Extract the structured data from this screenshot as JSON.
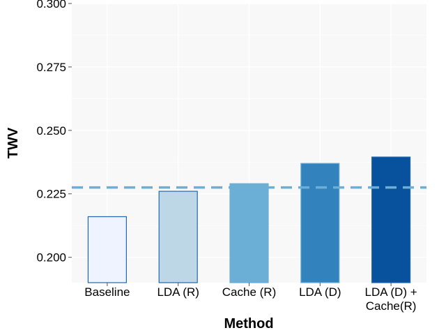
{
  "chart_data": {
    "type": "bar",
    "title": "",
    "xlabel": "Method",
    "ylabel": "TWV",
    "categories": [
      [
        "Baseline"
      ],
      [
        "LDA (R)"
      ],
      [
        "Cache (R)"
      ],
      [
        "LDA (D)"
      ],
      [
        "LDA (D) +",
        "Cache(R)"
      ]
    ],
    "values": [
      0.216,
      0.226,
      0.229,
      0.237,
      0.2395
    ],
    "bar_colors": [
      "#eff3ff",
      "#bdd7e7",
      "#6baed6",
      "#3182bd",
      "#08519c"
    ],
    "bar_strokes": [
      "#2166ac",
      "#2166ac",
      "#6baed6",
      "#6baed6",
      "#2166ac"
    ],
    "ylim": [
      0.19,
      0.3
    ],
    "yticks": [
      "0.200",
      "0.225",
      "0.250",
      "0.275",
      "0.300"
    ],
    "reference_line": {
      "value": 0.2275,
      "style": "dashed",
      "color": "#6baed6"
    },
    "grid": true,
    "panel_background": "#f8f8f8"
  }
}
